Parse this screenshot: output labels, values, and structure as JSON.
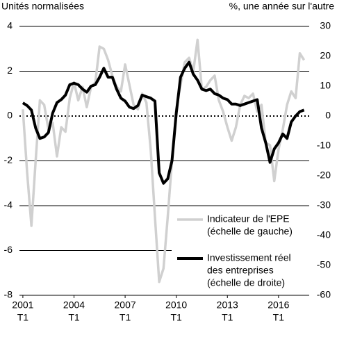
{
  "chart_data": {
    "type": "line",
    "y_label": "Unités normalisées",
    "y2_label": "%, une année sur l'autre",
    "x": [
      2001,
      2001.25,
      2001.5,
      2001.75,
      2002,
      2002.25,
      2002.5,
      2002.75,
      2003,
      2003.25,
      2003.5,
      2003.75,
      2004,
      2004.25,
      2004.5,
      2004.75,
      2005,
      2005.25,
      2005.5,
      2005.75,
      2006,
      2006.25,
      2006.5,
      2006.75,
      2007,
      2007.25,
      2007.5,
      2007.75,
      2008,
      2008.25,
      2008.5,
      2008.75,
      2009,
      2009.25,
      2009.5,
      2009.75,
      2010,
      2010.25,
      2010.5,
      2010.75,
      2011,
      2011.25,
      2011.5,
      2011.75,
      2012,
      2012.25,
      2012.5,
      2012.75,
      2013,
      2013.25,
      2013.5,
      2013.75,
      2014,
      2014.25,
      2014.5,
      2014.75,
      2015,
      2015.25,
      2015.5,
      2015.75,
      2016,
      2016.25,
      2016.5,
      2016.75,
      2017,
      2017.25,
      2017.5
    ],
    "xlim": [
      2000.8,
      2017.8
    ],
    "xticks": [
      2001,
      2004,
      2007,
      2010,
      2013,
      2016
    ],
    "xtick_sublabels": [
      "T1",
      "T1",
      "T1",
      "T1",
      "T1",
      "T1"
    ],
    "ylim": [
      -8,
      4
    ],
    "yticks": [
      4,
      2,
      0,
      -2,
      -4,
      -6,
      -8
    ],
    "y2lim": [
      -60,
      30
    ],
    "y2ticks": [
      30,
      20,
      10,
      0,
      -10,
      -20,
      -30,
      -40,
      -50,
      -60
    ],
    "series": [
      {
        "name": [
          "Indicateur de l'EPE",
          "(échelle de gauche)"
        ],
        "color": "#d0d0d0",
        "values": [
          0.3,
          -2.5,
          -4.9,
          -2,
          0.7,
          0.5,
          -0.6,
          -0.3,
          -1.8,
          -0.5,
          -0.7,
          0.8,
          1.5,
          0.7,
          1.3,
          0.4,
          1.3,
          1.5,
          3.1,
          3.0,
          2.5,
          1.8,
          1.3,
          1.1,
          2.3,
          1.4,
          0.5,
          0.3,
          1.0,
          0.6,
          -1.5,
          -4.5,
          -7.4,
          -6.8,
          -4.5,
          -2,
          0.3,
          1.4,
          2.4,
          2.6,
          2.0,
          3.4,
          1.2,
          1.3,
          1.6,
          1.8,
          0.7,
          0.2,
          -0.5,
          -1.1,
          -0.5,
          0.5,
          0.9,
          0.8,
          1.0,
          0.2,
          0.5,
          -1.2,
          -1.3,
          -2.9,
          -1.5,
          -0.6,
          0.5,
          1.1,
          0.8,
          2.8,
          2.5
        ]
      },
      {
        "name": [
          "Investissement réel",
          "des entreprises",
          "(échelle de droite)"
        ],
        "color": "#000000",
        "axis": "y2",
        "values": [
          4.4,
          3.5,
          2,
          -4,
          -7.5,
          -7,
          -5.5,
          1,
          4.5,
          5.5,
          7,
          10.5,
          11,
          10.5,
          9,
          8,
          10,
          10.5,
          13,
          16,
          13,
          13,
          9,
          6,
          5,
          3,
          2.5,
          3.5,
          7,
          6.5,
          6,
          5,
          -19,
          -22.5,
          -21,
          -15,
          1,
          13,
          16,
          18,
          14,
          12,
          9,
          8.5,
          9,
          7.5,
          7,
          6,
          5.5,
          4,
          4,
          3.5,
          4,
          4.5,
          5,
          5.5,
          -4,
          -9,
          -15.5,
          -11,
          -9,
          -6,
          -7.5,
          -2,
          0,
          1.5,
          2
        ]
      }
    ]
  }
}
